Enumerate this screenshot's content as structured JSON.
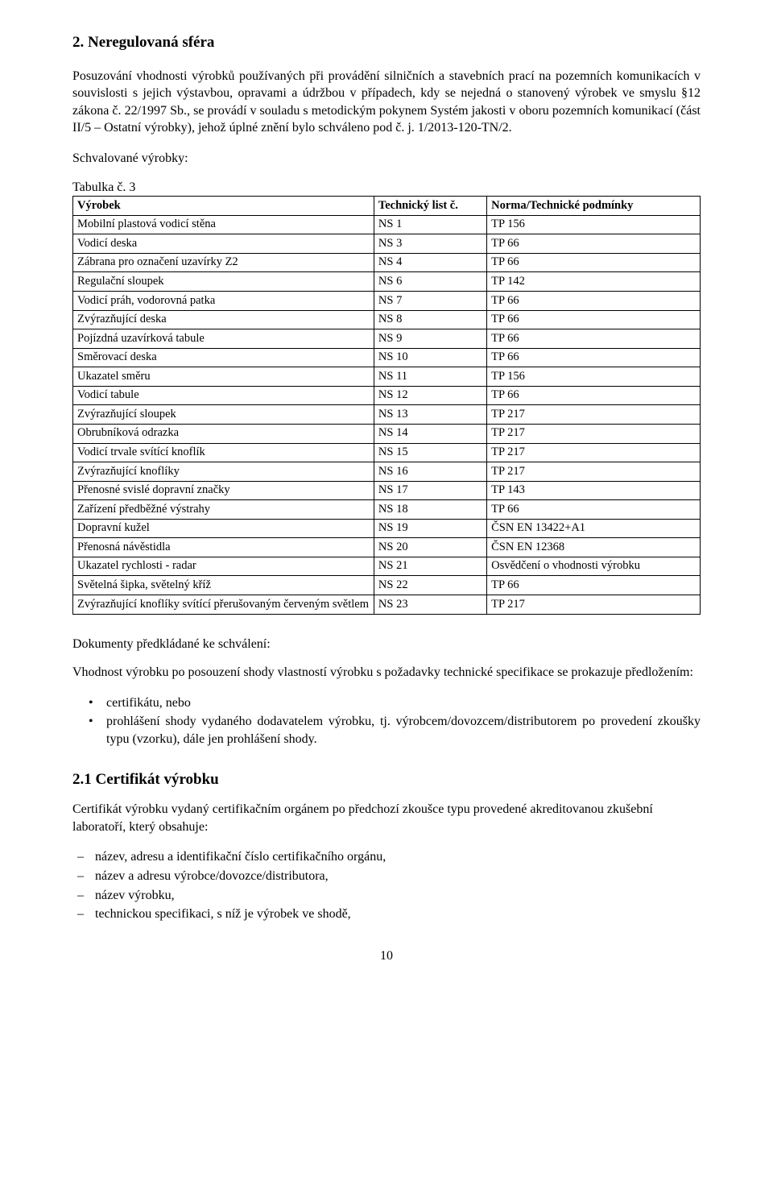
{
  "section2": {
    "heading": "2.  Neregulovaná sféra",
    "para1": "Posuzování vhodnosti výrobků používaných při provádění silničních a stavebních prací na pozemních komunikacích v souvislosti s jejich výstavbou, opravami a údržbou v případech, kdy se nejedná o stanovený výrobek ve smyslu §12 zákona č. 22/1997 Sb., se provádí v souladu s metodickým pokynem Systém jakosti v oboru pozemních komunikací (část II/5 – Ostatní výrobky), jehož úplné znění bylo schváleno  pod č. j. 1/2013-120-TN/2.",
    "label_schvalovane": "Schvalované výrobky:",
    "tab_caption": "Tabulka č. 3",
    "table_headers": [
      "Výrobek",
      "Technický list č.",
      "Norma/Technické podmínky"
    ],
    "table_rows": [
      [
        "Mobilní plastová vodicí stěna",
        "NS 1",
        "TP 156"
      ],
      [
        "Vodicí deska",
        "NS 3",
        "TP 66"
      ],
      [
        "Zábrana pro označení uzavírky Z2",
        "NS 4",
        "TP 66"
      ],
      [
        "Regulační sloupek",
        "NS 6",
        "TP 142"
      ],
      [
        "Vodicí práh, vodorovná patka",
        "NS 7",
        "TP 66"
      ],
      [
        "Zvýrazňující deska",
        "NS 8",
        "TP 66"
      ],
      [
        "Pojízdná uzavírková tabule",
        "NS 9",
        "TP 66"
      ],
      [
        "Směrovací deska",
        "NS 10",
        "TP 66"
      ],
      [
        "Ukazatel směru",
        "NS 11",
        "TP 156"
      ],
      [
        "Vodicí tabule",
        "NS 12",
        "TP 66"
      ],
      [
        "Zvýrazňující sloupek",
        "NS 13",
        "TP 217"
      ],
      [
        "Obrubníková odrazka",
        "NS 14",
        "TP 217"
      ],
      [
        "Vodicí trvale svítící knoflík",
        "NS 15",
        "TP 217"
      ],
      [
        "Zvýrazňující knoflíky",
        "NS 16",
        "TP 217"
      ],
      [
        "Přenosné svislé dopravní značky",
        "NS 17",
        "TP 143"
      ],
      [
        "Zařízení předběžné výstrahy",
        "NS 18",
        "TP 66"
      ],
      [
        "Dopravní kužel",
        "NS 19",
        "ČSN EN 13422+A1"
      ],
      [
        "Přenosná návěstidla",
        "NS 20",
        "ČSN EN 12368"
      ],
      [
        "Ukazatel rychlosti - radar",
        "NS 21",
        "Osvědčení o vhodnosti výrobku"
      ],
      [
        "Světelná šipka, světelný kříž",
        "NS 22",
        "TP 66"
      ],
      [
        "Zvýrazňující knoflíky svítící přerušovaným červeným světlem",
        "NS 23",
        "TP 217"
      ]
    ],
    "docs_heading": "Dokumenty předkládané ke schválení:",
    "docs_para": "Vhodnost výrobku po posouzení shody vlastností výrobku s požadavky technické specifikace se prokazuje předložením:",
    "docs_bullets": [
      "certifikátu, nebo",
      "prohlášení shody vydaného dodavatelem výrobku, tj. výrobcem/dovozcem/distributorem po provedení zkoušky typu (vzorku), dále jen prohlášení shody."
    ]
  },
  "section21": {
    "heading": "2.1 Certifikát výrobku",
    "para": "Certifikát výrobku vydaný certifikačním orgánem po předchozí zkoušce typu provedené akreditovanou zkušební laboratoří, který obsahuje:",
    "items": [
      "název, adresu a identifikační číslo certifikačního orgánu,",
      "název a adresu výrobce/dovozce/distributora,",
      "název výrobku,",
      "technickou specifikaci, s níž je výrobek ve shodě,"
    ]
  },
  "page_number": "10",
  "style": {
    "background_color": "#ffffff",
    "text_color": "#000000",
    "border_color": "#000000",
    "body_font_family": "Times New Roman",
    "body_fontsize_pt": 12,
    "heading_fontsize_pt": 14,
    "table_fontsize_pt": 11,
    "col_widths_percent": [
      48,
      18,
      34
    ]
  }
}
